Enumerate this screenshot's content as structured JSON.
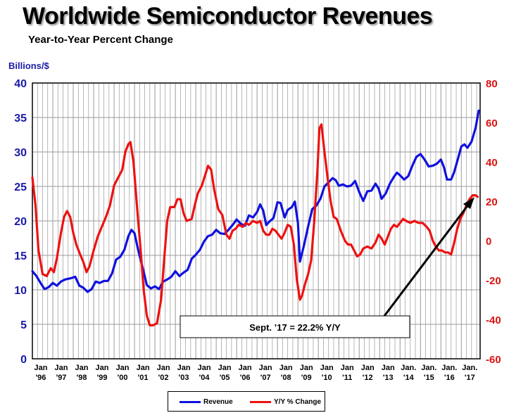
{
  "title": "Worldwide Semiconductor Revenues",
  "subtitle": "Year-to-Year Percent Change",
  "left_axis_label": "Billions/$",
  "annotation": "Sept. ’17 = 22.2% Y/Y",
  "colors": {
    "revenue": "#1010e0",
    "yy": "#ee1111",
    "left_axis": "#1a1aa8",
    "right_axis": "#dd1111",
    "grid": "#999999"
  },
  "legend": [
    {
      "label": "Revenue",
      "color": "#1010e0"
    },
    {
      "label": "Y/Y % Change",
      "color": "#ee1111"
    }
  ],
  "chart_data": {
    "type": "line",
    "title": "Worldwide Semiconductor Revenues",
    "subtitle": "Year-to-Year Percent Change",
    "ylabel": "Billions/$",
    "ylim": [
      0,
      40
    ],
    "y2lim": [
      -60,
      80
    ],
    "yticks": [
      0,
      5,
      10,
      15,
      20,
      25,
      30,
      35,
      40
    ],
    "y2ticks": [
      -60,
      -40,
      -20,
      0,
      20,
      40,
      60,
      80
    ],
    "x_range": [
      1996.0,
      2017.92
    ],
    "grid": true,
    "legend_position": "bottom-center",
    "x_ticks": [
      {
        "x": 1996,
        "top": "Jan",
        "bottom": "'96"
      },
      {
        "x": 1997,
        "top": "Jan",
        "bottom": "'97"
      },
      {
        "x": 1998,
        "top": "Jan",
        "bottom": "'98"
      },
      {
        "x": 1999,
        "top": "Jan",
        "bottom": "'99"
      },
      {
        "x": 2000,
        "top": "Jan",
        "bottom": "'00"
      },
      {
        "x": 2001,
        "top": "Jan",
        "bottom": "'01"
      },
      {
        "x": 2002,
        "top": "Jan",
        "bottom": "'02"
      },
      {
        "x": 2003,
        "top": "Jan",
        "bottom": "'03"
      },
      {
        "x": 2004,
        "top": "Jan",
        "bottom": "'04"
      },
      {
        "x": 2005,
        "top": "Jan",
        "bottom": "'05"
      },
      {
        "x": 2006,
        "top": "Jan",
        "bottom": "'06"
      },
      {
        "x": 2007,
        "top": "Jan",
        "bottom": "'07"
      },
      {
        "x": 2008,
        "top": "Jan",
        "bottom": "'08"
      },
      {
        "x": 2009,
        "top": "Jan",
        "bottom": "'09"
      },
      {
        "x": 2010,
        "top": "Jan",
        "bottom": "'10"
      },
      {
        "x": 2011,
        "top": "Jan",
        "bottom": "'11"
      },
      {
        "x": 2012,
        "top": "Jan",
        "bottom": "'12"
      },
      {
        "x": 2013,
        "top": "Jan",
        "bottom": "'13"
      },
      {
        "x": 2014,
        "top": "Jan.",
        "bottom": "'14"
      },
      {
        "x": 2015,
        "top": "Jan.",
        "bottom": "'15"
      },
      {
        "x": 2016,
        "top": "Jan.",
        "bottom": "'16"
      },
      {
        "x": 2017,
        "top": "Jan.",
        "bottom": "'17"
      }
    ],
    "series": [
      {
        "name": "Revenue",
        "axis": "left",
        "color": "#1010e0",
        "points": [
          [
            1996.0,
            12.7
          ],
          [
            1996.2,
            12.0
          ],
          [
            1996.4,
            11.0
          ],
          [
            1996.6,
            10.1
          ],
          [
            1996.8,
            10.4
          ],
          [
            1997.0,
            11.0
          ],
          [
            1997.2,
            10.6
          ],
          [
            1997.4,
            11.2
          ],
          [
            1997.6,
            11.5
          ],
          [
            1997.9,
            11.7
          ],
          [
            1998.1,
            11.9
          ],
          [
            1998.3,
            10.6
          ],
          [
            1998.5,
            10.3
          ],
          [
            1998.7,
            9.7
          ],
          [
            1998.9,
            10.1
          ],
          [
            1999.1,
            11.2
          ],
          [
            1999.3,
            11.0
          ],
          [
            1999.5,
            11.3
          ],
          [
            1999.7,
            11.3
          ],
          [
            1999.9,
            12.4
          ],
          [
            2000.1,
            14.4
          ],
          [
            2000.3,
            14.8
          ],
          [
            2000.5,
            15.8
          ],
          [
            2000.7,
            17.8
          ],
          [
            2000.85,
            18.7
          ],
          [
            2001.0,
            18.2
          ],
          [
            2001.2,
            15.5
          ],
          [
            2001.4,
            13.2
          ],
          [
            2001.6,
            10.7
          ],
          [
            2001.8,
            10.2
          ],
          [
            2002.0,
            10.5
          ],
          [
            2002.2,
            10.1
          ],
          [
            2002.4,
            11.2
          ],
          [
            2002.6,
            11.5
          ],
          [
            2002.8,
            11.9
          ],
          [
            2003.0,
            12.7
          ],
          [
            2003.2,
            12.0
          ],
          [
            2003.4,
            12.5
          ],
          [
            2003.6,
            12.9
          ],
          [
            2003.8,
            14.5
          ],
          [
            2004.0,
            15.1
          ],
          [
            2004.2,
            15.8
          ],
          [
            2004.4,
            17.0
          ],
          [
            2004.6,
            17.8
          ],
          [
            2004.8,
            18.0
          ],
          [
            2005.0,
            18.7
          ],
          [
            2005.2,
            18.2
          ],
          [
            2005.4,
            18.1
          ],
          [
            2005.6,
            18.7
          ],
          [
            2005.8,
            19.4
          ],
          [
            2006.0,
            20.2
          ],
          [
            2006.2,
            19.6
          ],
          [
            2006.4,
            19.3
          ],
          [
            2006.6,
            20.8
          ],
          [
            2006.8,
            20.5
          ],
          [
            2007.0,
            21.3
          ],
          [
            2007.15,
            22.4
          ],
          [
            2007.3,
            21.5
          ],
          [
            2007.45,
            19.4
          ],
          [
            2007.6,
            19.9
          ],
          [
            2007.8,
            20.4
          ],
          [
            2008.0,
            22.7
          ],
          [
            2008.15,
            22.6
          ],
          [
            2008.35,
            20.5
          ],
          [
            2008.5,
            21.6
          ],
          [
            2008.7,
            22.0
          ],
          [
            2008.85,
            22.8
          ],
          [
            2009.0,
            19.7
          ],
          [
            2009.1,
            14.1
          ],
          [
            2009.3,
            16.5
          ],
          [
            2009.5,
            19.2
          ],
          [
            2009.7,
            21.7
          ],
          [
            2009.9,
            22.2
          ],
          [
            2010.1,
            23.2
          ],
          [
            2010.3,
            25.0
          ],
          [
            2010.5,
            25.6
          ],
          [
            2010.7,
            26.2
          ],
          [
            2010.85,
            25.9
          ],
          [
            2011.0,
            25.1
          ],
          [
            2011.2,
            25.3
          ],
          [
            2011.4,
            25.0
          ],
          [
            2011.6,
            25.1
          ],
          [
            2011.8,
            25.8
          ],
          [
            2012.0,
            24.2
          ],
          [
            2012.2,
            22.9
          ],
          [
            2012.4,
            24.3
          ],
          [
            2012.6,
            24.4
          ],
          [
            2012.8,
            25.4
          ],
          [
            2012.95,
            24.7
          ],
          [
            2013.1,
            23.2
          ],
          [
            2013.3,
            24.0
          ],
          [
            2013.5,
            25.4
          ],
          [
            2013.7,
            26.4
          ],
          [
            2013.85,
            27.0
          ],
          [
            2014.0,
            26.6
          ],
          [
            2014.2,
            26.0
          ],
          [
            2014.4,
            26.5
          ],
          [
            2014.6,
            28.0
          ],
          [
            2014.8,
            29.3
          ],
          [
            2015.0,
            29.7
          ],
          [
            2015.2,
            28.9
          ],
          [
            2015.4,
            27.9
          ],
          [
            2015.6,
            28.0
          ],
          [
            2015.8,
            28.3
          ],
          [
            2016.0,
            28.9
          ],
          [
            2016.15,
            27.8
          ],
          [
            2016.3,
            26.0
          ],
          [
            2016.5,
            26.0
          ],
          [
            2016.65,
            27.1
          ],
          [
            2016.85,
            29.2
          ],
          [
            2017.0,
            30.8
          ],
          [
            2017.15,
            31.1
          ],
          [
            2017.3,
            30.6
          ],
          [
            2017.5,
            31.5
          ],
          [
            2017.7,
            33.5
          ],
          [
            2017.85,
            36.0
          ]
        ]
      },
      {
        "name": "Y/Y % Change",
        "axis": "right",
        "color": "#ee1111",
        "points": [
          [
            1996.0,
            32
          ],
          [
            1996.15,
            18
          ],
          [
            1996.3,
            -5
          ],
          [
            1996.5,
            -17
          ],
          [
            1996.7,
            -18
          ],
          [
            1996.9,
            -14
          ],
          [
            1997.05,
            -16
          ],
          [
            1997.2,
            -9
          ],
          [
            1997.4,
            4
          ],
          [
            1997.55,
            12
          ],
          [
            1997.7,
            15
          ],
          [
            1997.85,
            12
          ],
          [
            1998.0,
            4
          ],
          [
            1998.15,
            -2
          ],
          [
            1998.3,
            -6
          ],
          [
            1998.5,
            -11
          ],
          [
            1998.65,
            -16
          ],
          [
            1998.8,
            -13
          ],
          [
            1999.0,
            -5
          ],
          [
            1999.2,
            2
          ],
          [
            1999.4,
            7
          ],
          [
            1999.6,
            12
          ],
          [
            1999.8,
            18
          ],
          [
            2000.0,
            28
          ],
          [
            2000.2,
            32
          ],
          [
            2000.4,
            36
          ],
          [
            2000.55,
            45
          ],
          [
            2000.7,
            49
          ],
          [
            2000.8,
            50
          ],
          [
            2000.95,
            40
          ],
          [
            2001.1,
            20
          ],
          [
            2001.3,
            -5
          ],
          [
            2001.45,
            -25
          ],
          [
            2001.6,
            -38
          ],
          [
            2001.75,
            -43
          ],
          [
            2001.9,
            -43
          ],
          [
            2002.1,
            -42
          ],
          [
            2002.3,
            -30
          ],
          [
            2002.45,
            -10
          ],
          [
            2002.6,
            10
          ],
          [
            2002.75,
            17
          ],
          [
            2002.95,
            17
          ],
          [
            2003.1,
            21
          ],
          [
            2003.25,
            21
          ],
          [
            2003.4,
            14
          ],
          [
            2003.55,
            10
          ],
          [
            2003.8,
            11
          ],
          [
            2003.95,
            18
          ],
          [
            2004.1,
            24
          ],
          [
            2004.3,
            28
          ],
          [
            2004.45,
            33
          ],
          [
            2004.6,
            38
          ],
          [
            2004.75,
            36
          ],
          [
            2004.9,
            26
          ],
          [
            2005.1,
            16
          ],
          [
            2005.3,
            13
          ],
          [
            2005.5,
            3
          ],
          [
            2005.65,
            1
          ],
          [
            2005.8,
            5
          ],
          [
            2005.95,
            6
          ],
          [
            2006.1,
            8
          ],
          [
            2006.3,
            7
          ],
          [
            2006.45,
            9
          ],
          [
            2006.6,
            8
          ],
          [
            2006.8,
            10
          ],
          [
            2007.0,
            9
          ],
          [
            2007.15,
            10
          ],
          [
            2007.3,
            5
          ],
          [
            2007.45,
            3
          ],
          [
            2007.6,
            3
          ],
          [
            2007.75,
            6
          ],
          [
            2007.9,
            5
          ],
          [
            2008.05,
            3
          ],
          [
            2008.2,
            1
          ],
          [
            2008.35,
            4
          ],
          [
            2008.5,
            8
          ],
          [
            2008.65,
            7
          ],
          [
            2008.8,
            -2
          ],
          [
            2008.95,
            -20
          ],
          [
            2009.1,
            -30
          ],
          [
            2009.2,
            -28
          ],
          [
            2009.35,
            -22
          ],
          [
            2009.5,
            -17
          ],
          [
            2009.65,
            -10
          ],
          [
            2009.8,
            10
          ],
          [
            2009.95,
            35
          ],
          [
            2010.05,
            57
          ],
          [
            2010.15,
            59
          ],
          [
            2010.3,
            45
          ],
          [
            2010.45,
            32
          ],
          [
            2010.6,
            20
          ],
          [
            2010.75,
            12
          ],
          [
            2010.9,
            11
          ],
          [
            2011.1,
            5
          ],
          [
            2011.3,
            0
          ],
          [
            2011.45,
            -2
          ],
          [
            2011.6,
            -2
          ],
          [
            2011.75,
            -5
          ],
          [
            2011.9,
            -8
          ],
          [
            2012.05,
            -7
          ],
          [
            2012.2,
            -4
          ],
          [
            2012.4,
            -3
          ],
          [
            2012.6,
            -4
          ],
          [
            2012.8,
            -1
          ],
          [
            2012.95,
            3
          ],
          [
            2013.1,
            1
          ],
          [
            2013.25,
            -2
          ],
          [
            2013.4,
            2
          ],
          [
            2013.55,
            6
          ],
          [
            2013.7,
            8
          ],
          [
            2013.85,
            7
          ],
          [
            2014.0,
            9
          ],
          [
            2014.15,
            11
          ],
          [
            2014.3,
            10
          ],
          [
            2014.5,
            9
          ],
          [
            2014.7,
            10
          ],
          [
            2014.9,
            9
          ],
          [
            2015.1,
            9
          ],
          [
            2015.3,
            7
          ],
          [
            2015.45,
            5
          ],
          [
            2015.6,
            0
          ],
          [
            2015.75,
            -3
          ],
          [
            2015.9,
            -5
          ],
          [
            2016.05,
            -5
          ],
          [
            2016.2,
            -6
          ],
          [
            2016.35,
            -6
          ],
          [
            2016.5,
            -7
          ],
          [
            2016.65,
            -1
          ],
          [
            2016.8,
            6
          ],
          [
            2016.95,
            11
          ],
          [
            2017.1,
            14
          ],
          [
            2017.25,
            18
          ],
          [
            2017.4,
            21
          ],
          [
            2017.55,
            23
          ],
          [
            2017.7,
            23
          ],
          [
            2017.8,
            22.2
          ]
        ]
      }
    ]
  }
}
